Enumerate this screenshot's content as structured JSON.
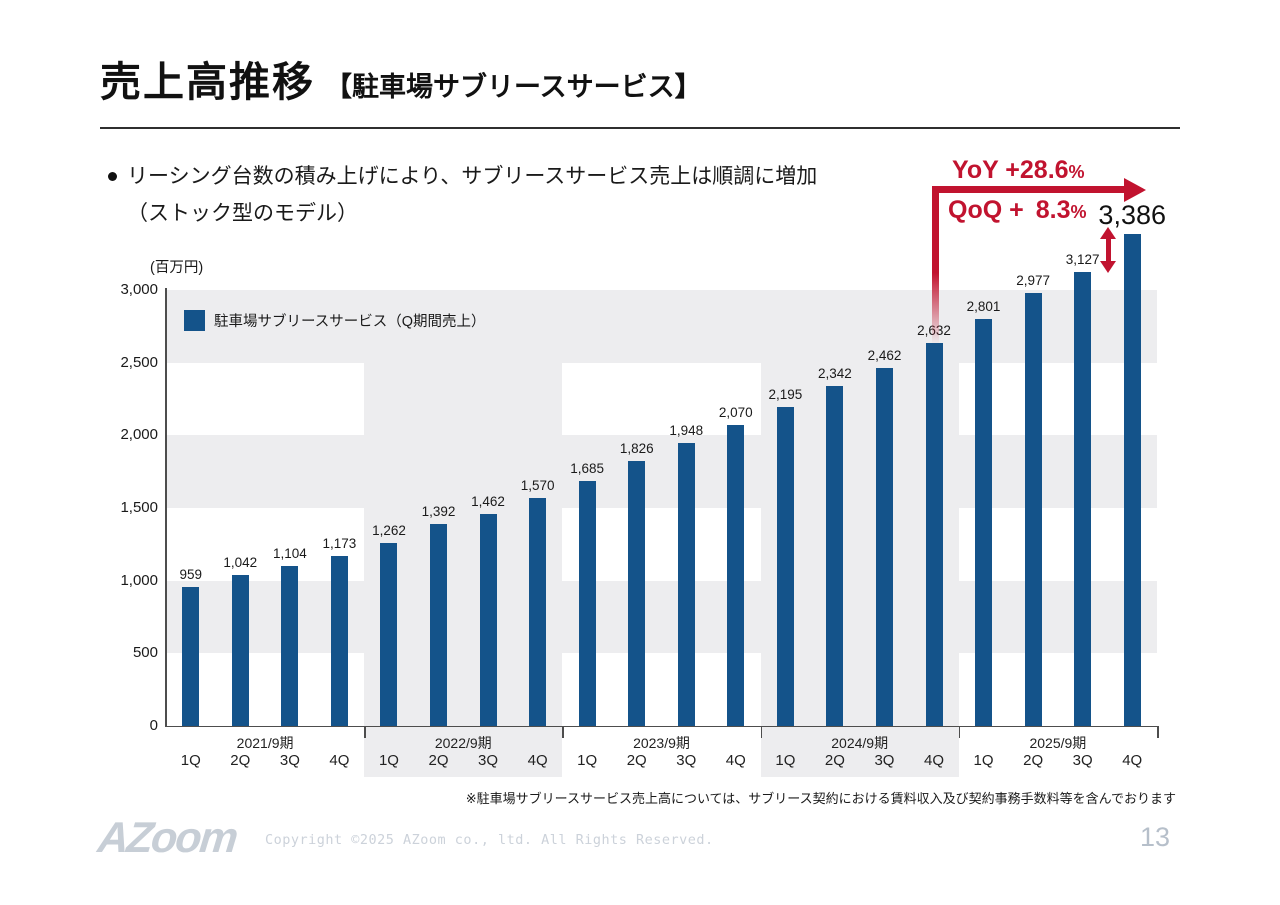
{
  "slide": {
    "title_main": "売上高推移",
    "title_sub": "【駐車場サブリースサービス】",
    "bullet_line1": "リーシング台数の積み上げにより、サブリースサービス売上は順調に増加",
    "bullet_line2": "（ストック型のモデル）",
    "footnote": "※駐車場サブリースサービス売上高については、サブリース契約における賃料収入及び契約事務手数料等を含んでおります",
    "page_number": "13"
  },
  "annotations": {
    "yoy_label": "YoY",
    "yoy_value": "+28.6",
    "qoq_label": "QoQ +",
    "qoq_value": "8.3",
    "pct": "%"
  },
  "chart_data": {
    "type": "bar",
    "title": "駐車場サブリースサービス（Q期間売上）",
    "legend": "駐車場サブリースサービス（Q期間売上）",
    "legend_position": "top-left-inside",
    "unit_label": "(百万円)",
    "xlabel": "",
    "ylabel": "百万円",
    "ylim": [
      0,
      3000
    ],
    "yticks": [
      0,
      500,
      1000,
      1500,
      2000,
      2500,
      3000
    ],
    "grid": "alternating-bands",
    "shaded_group_indices": [
      1,
      3
    ],
    "highlight_index": 19,
    "groups": [
      {
        "year": "2021/9期",
        "quarters": [
          "1Q",
          "2Q",
          "3Q",
          "4Q"
        ],
        "values": [
          959,
          1042,
          1104,
          1173
        ]
      },
      {
        "year": "2022/9期",
        "quarters": [
          "1Q",
          "2Q",
          "3Q",
          "4Q"
        ],
        "values": [
          1262,
          1392,
          1462,
          1570
        ]
      },
      {
        "year": "2023/9期",
        "quarters": [
          "1Q",
          "2Q",
          "3Q",
          "4Q"
        ],
        "values": [
          1685,
          1826,
          1948,
          2070
        ]
      },
      {
        "year": "2024/9期",
        "quarters": [
          "1Q",
          "2Q",
          "3Q",
          "4Q"
        ],
        "values": [
          2195,
          2342,
          2462,
          2632
        ]
      },
      {
        "year": "2025/9期",
        "quarters": [
          "1Q",
          "2Q",
          "3Q",
          "4Q"
        ],
        "values": [
          2801,
          2977,
          3127,
          3386
        ]
      }
    ],
    "bar_color": "#14538a",
    "accent_color": "#c1132f"
  },
  "footer": {
    "logo_text": "AZoom",
    "copyright": "Copyright ©2025 AZoom co., ltd. All Rights Reserved."
  }
}
